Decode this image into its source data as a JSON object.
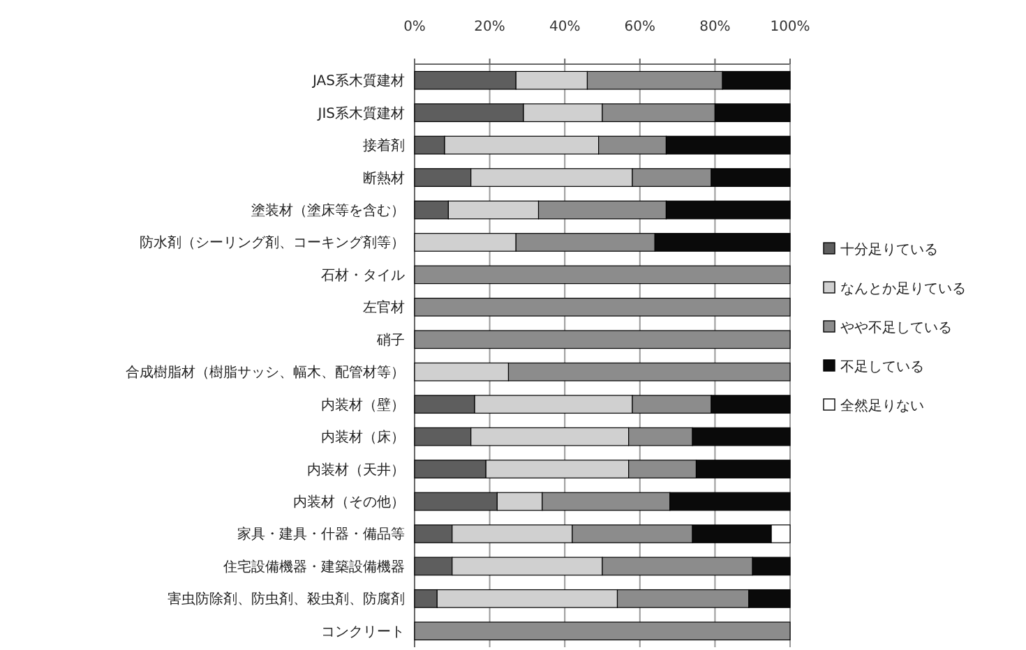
{
  "chart_data": {
    "type": "bar",
    "orientation": "horizontal",
    "stacked": true,
    "grid": "x",
    "legend": "right",
    "categories": [
      "JAS系木質建材",
      "JIS系木質建材",
      "接着剤",
      "断熱材",
      "塗装材（塗床等を含む）",
      "防水剤（シーリング剤、コーキング剤等）",
      "石材・タイル",
      "左官材",
      "硝子",
      "合成樹脂材（樹脂サッシ、幅木、配管材等）",
      "内装材（壁）",
      "内装材（床）",
      "内装材（天井）",
      "内装材（その他）",
      "家具・建具・什器・備品等",
      "住宅設備機器・建築設備機器",
      "害虫防除剤、防虫剤、殺虫剤、防腐剤",
      "コンクリート"
    ],
    "xlim": [
      0,
      100
    ],
    "xticks": [
      {
        "value": 0,
        "label": "0%"
      },
      {
        "value": 20,
        "label": "20%"
      },
      {
        "value": 40,
        "label": "40%"
      },
      {
        "value": 60,
        "label": "60%"
      },
      {
        "value": 80,
        "label": "80%"
      },
      {
        "value": 100,
        "label": "100%"
      }
    ],
    "series": [
      {
        "name": "十分足りている",
        "color": "#5e5e5e",
        "values": [
          27,
          29,
          8,
          15,
          9,
          0,
          0,
          0,
          0,
          0,
          16,
          15,
          19,
          22,
          10,
          10,
          6,
          0
        ]
      },
      {
        "name": "なんとか足りている",
        "color": "#d0d0d0",
        "values": [
          19,
          21,
          41,
          43,
          24,
          27,
          0,
          0,
          0,
          25,
          42,
          42,
          38,
          12,
          32,
          40,
          48,
          0
        ]
      },
      {
        "name": "やや不足している",
        "color": "#8c8c8c",
        "values": [
          36,
          30,
          18,
          21,
          34,
          37,
          100,
          100,
          100,
          75,
          21,
          17,
          18,
          34,
          32,
          40,
          35,
          100
        ]
      },
      {
        "name": "不足している",
        "color": "#0a0a0a",
        "values": [
          18,
          20,
          33,
          21,
          33,
          36,
          0,
          0,
          0,
          0,
          21,
          26,
          25,
          32,
          21,
          10,
          11,
          0
        ]
      },
      {
        "name": "全然足りない",
        "color": "#ffffff",
        "values": [
          0,
          0,
          0,
          0,
          0,
          0,
          0,
          0,
          0,
          0,
          0,
          0,
          0,
          0,
          5,
          0,
          0,
          0
        ]
      }
    ]
  }
}
